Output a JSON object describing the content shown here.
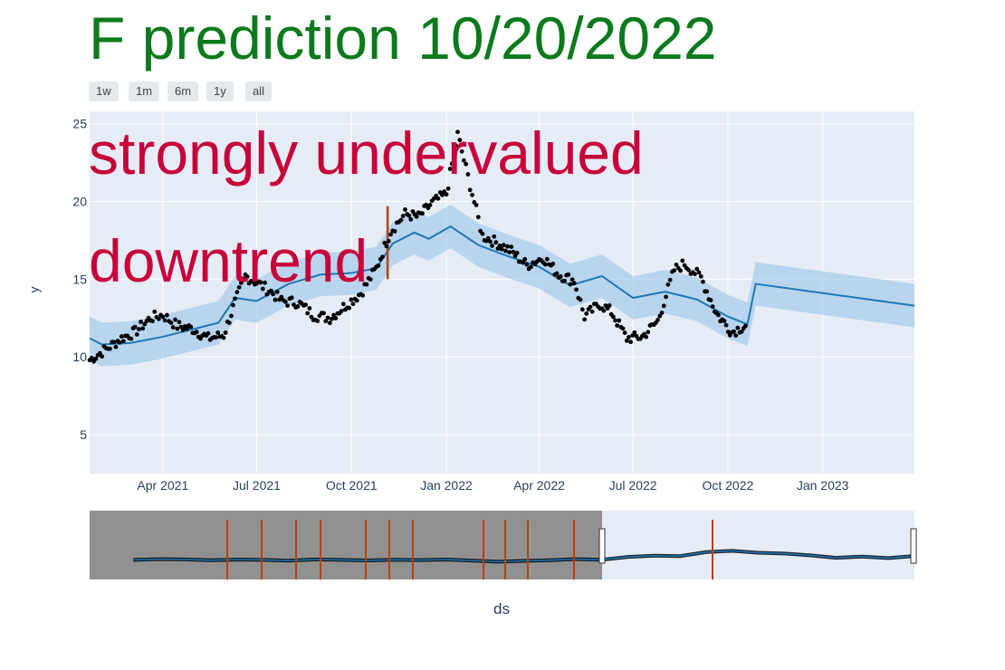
{
  "title": "F prediction 10/20/2022",
  "annotations": [
    "strongly undervalued",
    "downtrend"
  ],
  "range_buttons": [
    "1w",
    "1m",
    "6m",
    "1y",
    "all"
  ],
  "colors": {
    "title": "#0b7a1c",
    "annotation": "#c8003a",
    "plot_bg": "#e5ecf6",
    "trend_line": "#1f77b4",
    "band": "#a9cdea",
    "actual_points": "#000000",
    "changepoint": "#b5420d",
    "slider_mask": "#8c8c8c"
  },
  "chart_data": {
    "type": "line",
    "xlabel": "ds",
    "ylabel": "y",
    "x_start": "2021-01-20",
    "x_end": "2023-03-31",
    "ylim": [
      2.5,
      25.8
    ],
    "y_ticks": [
      5,
      10,
      15,
      20,
      25
    ],
    "x_ticks": [
      {
        "date": "2021-04-01",
        "label": "Apr 2021"
      },
      {
        "date": "2021-07-01",
        "label": "Jul 2021"
      },
      {
        "date": "2021-10-01",
        "label": "Oct 2021"
      },
      {
        "date": "2022-01-01",
        "label": "Jan 2022"
      },
      {
        "date": "2022-04-01",
        "label": "Apr 2022"
      },
      {
        "date": "2022-07-01",
        "label": "Jul 2022"
      },
      {
        "date": "2022-10-01",
        "label": "Oct 2022"
      },
      {
        "date": "2023-01-01",
        "label": "Jan 2023"
      }
    ],
    "grid": true,
    "changepoint_date": "2021-11-05",
    "changepoint_range": [
      15.0,
      19.7
    ],
    "series": [
      {
        "role": "forecast",
        "points": [
          [
            "2021-01-20",
            11.2
          ],
          [
            "2021-02-01",
            10.8
          ],
          [
            "2021-03-01",
            10.9
          ],
          [
            "2021-04-01",
            11.3
          ],
          [
            "2021-05-01",
            11.8
          ],
          [
            "2021-05-25",
            12.2
          ],
          [
            "2021-06-10",
            13.8
          ],
          [
            "2021-07-01",
            13.6
          ],
          [
            "2021-08-01",
            14.7
          ],
          [
            "2021-09-01",
            15.3
          ],
          [
            "2021-10-01",
            15.4
          ],
          [
            "2021-10-25",
            15.7
          ],
          [
            "2021-11-10",
            17.3
          ],
          [
            "2021-12-01",
            18.0
          ],
          [
            "2021-12-15",
            17.6
          ],
          [
            "2022-01-05",
            18.4
          ],
          [
            "2022-02-01",
            17.2
          ],
          [
            "2022-03-01",
            16.5
          ],
          [
            "2022-04-01",
            15.8
          ],
          [
            "2022-05-01",
            14.6
          ],
          [
            "2022-06-01",
            15.2
          ],
          [
            "2022-07-01",
            13.8
          ],
          [
            "2022-08-01",
            14.2
          ],
          [
            "2022-09-01",
            13.7
          ],
          [
            "2022-10-01",
            12.6
          ],
          [
            "2022-10-20",
            12.1
          ],
          [
            "2022-10-28",
            14.7
          ],
          [
            "2023-03-31",
            13.3
          ]
        ],
        "band_halfwidth": 1.4
      }
    ],
    "actual": [
      [
        "2021-01-20",
        9.8
      ],
      [
        "2021-02-05",
        10.5
      ],
      [
        "2021-02-20",
        11.2
      ],
      [
        "2021-03-05",
        11.6
      ],
      [
        "2021-03-20",
        12.5
      ],
      [
        "2021-04-01",
        12.7
      ],
      [
        "2021-04-15",
        12.0
      ],
      [
        "2021-04-30",
        11.8
      ],
      [
        "2021-05-15",
        11.2
      ],
      [
        "2021-05-30",
        11.4
      ],
      [
        "2021-06-10",
        13.5
      ],
      [
        "2021-06-20",
        15.2
      ],
      [
        "2021-07-01",
        14.8
      ],
      [
        "2021-07-15",
        14.2
      ],
      [
        "2021-07-25",
        13.6
      ],
      [
        "2021-08-10",
        13.5
      ],
      [
        "2021-08-25",
        12.7
      ],
      [
        "2021-09-10",
        12.5
      ],
      [
        "2021-09-25",
        13.3
      ],
      [
        "2021-10-10",
        14.1
      ],
      [
        "2021-10-25",
        15.7
      ],
      [
        "2021-11-08",
        18.1
      ],
      [
        "2021-11-22",
        19.2
      ],
      [
        "2021-12-05",
        19.0
      ],
      [
        "2021-12-18",
        19.9
      ],
      [
        "2022-01-01",
        20.5
      ],
      [
        "2022-01-12",
        24.3
      ],
      [
        "2022-01-22",
        21.6
      ],
      [
        "2022-02-05",
        17.8
      ],
      [
        "2022-02-20",
        17.3
      ],
      [
        "2022-03-05",
        16.8
      ],
      [
        "2022-03-20",
        15.9
      ],
      [
        "2022-04-05",
        16.4
      ],
      [
        "2022-04-20",
        15.3
      ],
      [
        "2022-05-05",
        14.9
      ],
      [
        "2022-05-15",
        12.6
      ],
      [
        "2022-05-30",
        13.4
      ],
      [
        "2022-06-10",
        12.9
      ],
      [
        "2022-06-25",
        11.2
      ],
      [
        "2022-07-10",
        11.3
      ],
      [
        "2022-07-25",
        12.3
      ],
      [
        "2022-08-10",
        15.6
      ],
      [
        "2022-08-20",
        16.0
      ],
      [
        "2022-09-05",
        15.1
      ],
      [
        "2022-09-20",
        12.8
      ],
      [
        "2022-10-05",
        11.6
      ],
      [
        "2022-10-20",
        12.1
      ]
    ]
  }
}
